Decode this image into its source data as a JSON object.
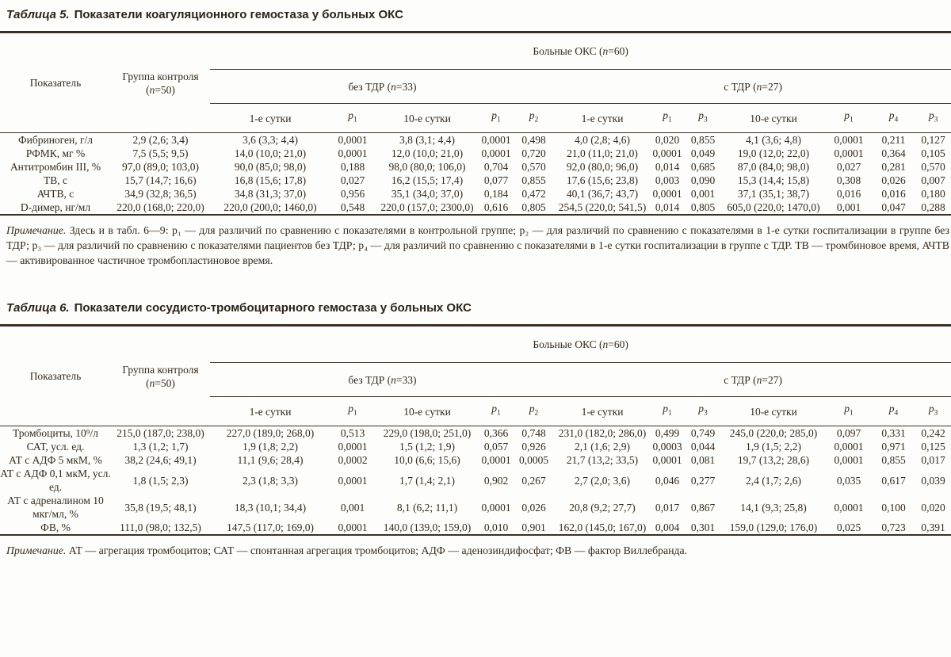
{
  "shared": {
    "indicator": "Показатель",
    "control_line1": "Группа контроля",
    "control_prefix": "(",
    "n": "n",
    "control_suffix": "=50)",
    "patients_prefix": "Больные ОКС (",
    "patients_suffix": "=60)",
    "without_prefix": "без ТДР (",
    "without_suffix": "=33)",
    "with_prefix": "с ТДР (",
    "with_suffix": "=27)",
    "day1": "1-е сутки",
    "day10": "10-е сутки",
    "p": "p",
    "sub1": "1",
    "sub2": "2",
    "sub3": "3",
    "sub4": "4"
  },
  "table5": {
    "title_label": "Таблица 5.",
    "title_text": "Показатели коагуляционного гемостаза у больных ОКС",
    "rows": [
      {
        "label": "Фибриноген, г/л",
        "cells": [
          "2,9 (2,6; 3,4)",
          "3,6 (3,3; 4,4)",
          "0,0001",
          "3,8 (3,1; 4,4)",
          "0,0001",
          "0,498",
          "4,0 (2,8; 4,6)",
          "0,020",
          "0,855",
          "4,1 (3,6; 4,8)",
          "0,0001",
          "0,211",
          "0,127"
        ]
      },
      {
        "label": "РФМК, мг %",
        "cells": [
          "7,5 (5,5; 9,5)",
          "14,0 (10,0; 21,0)",
          "0,0001",
          "12,0 (10,0; 21,0)",
          "0,0001",
          "0,720",
          "21,0 (11,0; 21,0)",
          "0,0001",
          "0,049",
          "19,0 (12,0; 22,0)",
          "0,0001",
          "0,364",
          "0,105"
        ]
      },
      {
        "label": "Антитромбин III, %",
        "cells": [
          "97,0 (89,0; 103,0)",
          "90,0 (85,0; 98,0)",
          "0,188",
          "98,0 (80,0; 106,0)",
          "0,704",
          "0,570",
          "92,0 (80,0; 96,0)",
          "0,014",
          "0,685",
          "87,0 (84,0; 98,0)",
          "0,027",
          "0,281",
          "0,570"
        ]
      },
      {
        "label": "ТВ, с",
        "cells": [
          "15,7 (14,7; 16,6)",
          "16,8 (15,6; 17,8)",
          "0,027",
          "16,2 (15,5; 17,4)",
          "0,077",
          "0,855",
          "17,6 (15,6; 23,8)",
          "0,003",
          "0,090",
          "15,3 (14,4; 15,8)",
          "0,308",
          "0,026",
          "0,007"
        ]
      },
      {
        "label": "АЧТВ, с",
        "cells": [
          "34,9 (32,8; 36,5)",
          "34,8 (31,3; 37,0)",
          "0,956",
          "35,1 (34,0; 37,0)",
          "0,184",
          "0,472",
          "40,1 (36,7; 43,7)",
          "0,0001",
          "0,001",
          "37,1 (35,1; 38,7)",
          "0,016",
          "0,016",
          "0,180"
        ]
      },
      {
        "label": "D-димер, нг/мл",
        "cells": [
          "220,0 (168,0; 220,0)",
          "220,0 (200,0; 1460,0)",
          "0,548",
          "220,0 (157,0; 2300,0)",
          "0,616",
          "0,805",
          "254,5 (220,0; 541,5)",
          "0,014",
          "0,805",
          "605,0 (220,0; 1470,0)",
          "0,001",
          "0,047",
          "0,288"
        ]
      }
    ],
    "note_label": "Примечание.",
    "note_text": " Здесь и в табл. 6—9: p₁ — для различий по сравнению с показателями в контрольной группе; p₂ — для различий по сравнению с показателями в 1-е сутки госпитализации в группе без ТДР; p₃ — для различий по сравнению с показателями пациентов без ТДР; p₄ — для различий по сравнению с показателями в 1-е сутки госпитализации в группе с ТДР. ТВ — тромбиновое время, АЧТВ — активированное частичное тромбопластиновое время."
  },
  "table6": {
    "title_label": "Таблица 6.",
    "title_text": "Показатели сосудисто-тромбоцитарного гемостаза у больных ОКС",
    "rows": [
      {
        "label": "Тромбоциты, 10⁹/л",
        "cells": [
          "215,0 (187,0; 238,0)",
          "227,0 (189,0; 268,0)",
          "0,513",
          "229,0 (198,0; 251,0)",
          "0,366",
          "0,748",
          "231,0 (182,0; 286,0)",
          "0,499",
          "0,749",
          "245,0 (220,0; 285,0)",
          "0,097",
          "0,331",
          "0,242"
        ]
      },
      {
        "label": "САТ, усл. ед.",
        "cells": [
          "1,3 (1,2; 1,7)",
          "1,9 (1,8; 2,2)",
          "0,0001",
          "1,5 (1,2; 1,9)",
          "0,057",
          "0,926",
          "2,1 (1,6; 2,9)",
          "0,0003",
          "0,044",
          "1,9 (1,5; 2,2)",
          "0,0001",
          "0,971",
          "0,125"
        ]
      },
      {
        "label": "АТ с АДФ 5 мкМ, %",
        "cells": [
          "38,2 (24,6; 49,1)",
          "11,1 (9,6; 28,4)",
          "0,0002",
          "10,0 (6,6; 15,6)",
          "0,0001",
          "0,0005",
          "21,7 (13,2; 33,5)",
          "0,0001",
          "0,081",
          "19,7 (13,2; 28,6)",
          "0,0001",
          "0,855",
          "0,017"
        ]
      },
      {
        "label": "АТ с АДФ 0,1 мкМ, усл. ед.",
        "cells": [
          "1,8 (1,5; 2,3)",
          "2,3 (1,8; 3,3)",
          "0,0001",
          "1,7 (1,4; 2,1)",
          "0,902",
          "0,267",
          "2,7 (2,0; 3,6)",
          "0,046",
          "0,277",
          "2,4 (1,7; 2,6)",
          "0,035",
          "0,617",
          "0,039"
        ]
      },
      {
        "label": "АТ с адреналином 10 мкг/мл, %",
        "cells": [
          "35,8 (19,5; 48,1)",
          "18,3 (10,1; 34,4)",
          "0,001",
          "8,1 (6,2; 11,1)",
          "0,0001",
          "0,026",
          "20,8 (9,2; 27,7)",
          "0,017",
          "0,867",
          "14,1 (9,3; 25,8)",
          "0,0001",
          "0,100",
          "0,020"
        ]
      },
      {
        "label": "ФВ, %",
        "cells": [
          "111,0 (98,0; 132,5)",
          "147,5 (117,0; 169,0)",
          "0,0001",
          "140,0 (139,0; 159,0)",
          "0,010",
          "0,901",
          "162,0 (145,0; 167,0)",
          "0,004",
          "0,301",
          "159,0 (129,0; 176,0)",
          "0,025",
          "0,723",
          "0,391"
        ]
      }
    ],
    "note_label": "Примечание.",
    "note_text": " АТ — агрегация тромбоцитов; САТ — спонтанная агрегация тромбоцитов; АДФ — аденозиндифосфат; ФВ — фактор Виллебранда."
  }
}
